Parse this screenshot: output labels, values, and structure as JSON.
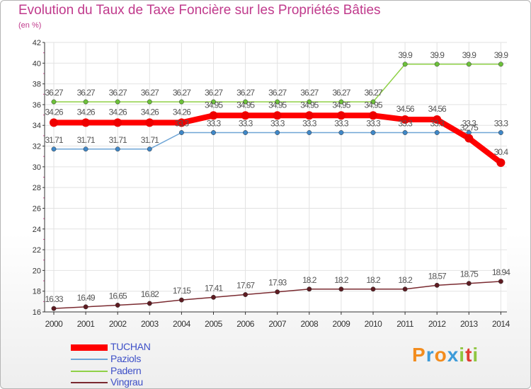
{
  "header": {
    "title": "Evolution du Taux de Taxe Foncière sur les Propriétés Bâties",
    "unit": "(en %)"
  },
  "chart_data": {
    "type": "line",
    "title": "Evolution du Taux de Taxe Foncière sur les Propriétés Bâties",
    "ylabel": "(en %)",
    "xlabel": "",
    "ylim": [
      16,
      42
    ],
    "yticks": [
      16,
      18,
      20,
      22,
      24,
      26,
      28,
      30,
      32,
      34,
      36,
      38,
      40,
      42
    ],
    "x": [
      "2000",
      "2001",
      "2002",
      "2003",
      "2004",
      "2005",
      "2006",
      "2007",
      "2008",
      "2009",
      "2010",
      "2011",
      "2012",
      "2013",
      "2014"
    ],
    "grid": true,
    "series": [
      {
        "name": "Padern",
        "color": "#8fd147",
        "marker": "#6cc13a",
        "values": [
          36.27,
          36.27,
          36.27,
          36.27,
          36.27,
          36.27,
          36.27,
          36.27,
          36.27,
          36.27,
          36.27,
          39.9,
          39.9,
          39.9,
          39.9
        ],
        "labels": [
          "36.27",
          "36.27",
          "36.27",
          "36.27",
          "36.27",
          "36.27",
          "36.27",
          "36.27",
          "36.27",
          "36.27",
          "36.27",
          "39.9",
          "39.9",
          "39.9",
          "39.9"
        ]
      },
      {
        "name": "Paziols",
        "color": "#6ea5d6",
        "marker": "#3f87c7",
        "values": [
          31.71,
          31.71,
          31.71,
          31.71,
          33.3,
          33.3,
          33.3,
          33.3,
          33.3,
          33.3,
          33.3,
          33.3,
          33.3,
          33.3,
          33.3
        ],
        "labels": [
          "31.71",
          "31.71",
          "31.71",
          "31.71",
          "33.3",
          "33.3",
          "33.3",
          "33.3",
          "33.3",
          "33.3",
          "33.3",
          "33.3",
          "33.3",
          "33.3",
          "33.3"
        ]
      },
      {
        "name": "Vingrau",
        "color": "#7a2a30",
        "marker": "#5e1c22",
        "values": [
          16.33,
          16.49,
          16.65,
          16.82,
          17.15,
          17.41,
          17.67,
          17.93,
          18.2,
          18.2,
          18.2,
          18.2,
          18.57,
          18.75,
          18.94
        ],
        "labels": [
          "16.33",
          "16.49",
          "16.65",
          "16.82",
          "17.15",
          "17.41",
          "17.67",
          "17.93",
          "18.2",
          "18.2",
          "18.2",
          "18.2",
          "18.57",
          "18.75",
          "18.94"
        ]
      },
      {
        "name": "TUCHAN",
        "color": "#ff0000",
        "marker": "#ee0000",
        "values": [
          34.26,
          34.26,
          34.26,
          34.26,
          34.26,
          34.95,
          34.95,
          34.95,
          34.95,
          34.95,
          34.95,
          34.56,
          34.56,
          32.75,
          30.4
        ],
        "labels": [
          "34.26",
          "34.26",
          "34.26",
          "34.26",
          "34.26",
          "34.95",
          "34.95",
          "34.95",
          "34.95",
          "34.95",
          "34.95",
          "34.56",
          "34.56",
          "32.75",
          "30.4"
        ]
      }
    ]
  },
  "legend": [
    {
      "label": "TUCHAN",
      "color": "#ff0000"
    },
    {
      "label": "Paziols",
      "color": "#6ea5d6"
    },
    {
      "label": "Padern",
      "color": "#8fd147"
    },
    {
      "label": "Vingrau",
      "color": "#7a2a30"
    }
  ],
  "logo": {
    "letters": [
      "P",
      "r",
      "o",
      "x",
      "i",
      "t",
      "i"
    ],
    "colors": [
      "#f28c1e",
      "#3d9bd9",
      "#f28c1e",
      "#3d9bd9",
      "#8fc640",
      "#e03c31",
      "#8fc640"
    ]
  }
}
